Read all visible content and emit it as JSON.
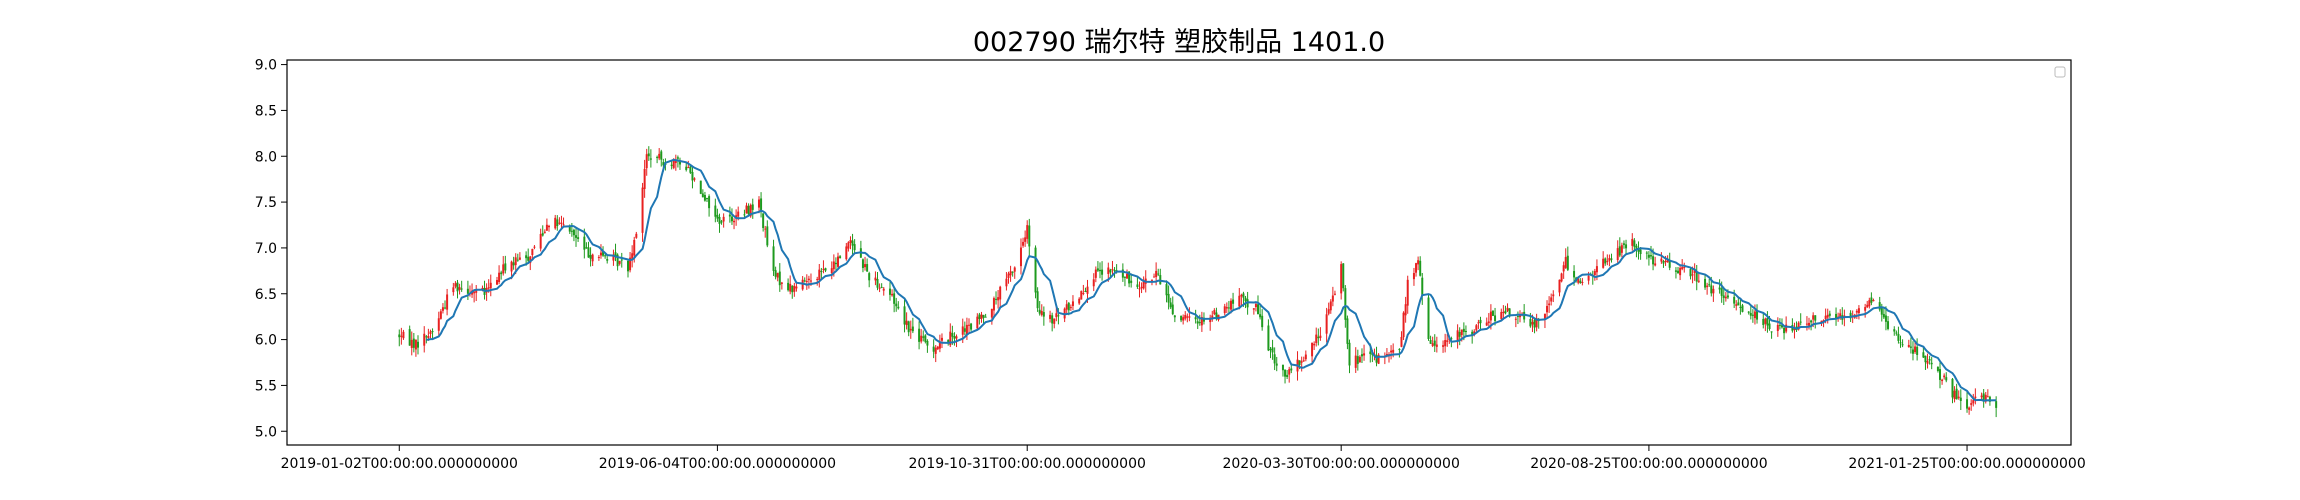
{
  "chart_data": {
    "type": "candlestick",
    "title": "002790 瑞尔特 塑胶制品 1401.0",
    "xlabel": "",
    "ylabel": "",
    "ylim": [
      4.85,
      9.05
    ],
    "xlim": [
      "2018-11-09",
      "2021-03-16"
    ],
    "yticks": [
      5.0,
      5.5,
      6.0,
      6.5,
      7.0,
      7.5,
      8.0,
      8.5,
      9.0
    ],
    "ytick_labels": [
      "5.0",
      "5.5",
      "6.0",
      "6.5",
      "7.0",
      "7.5",
      "8.0",
      "8.5",
      "9.0"
    ],
    "xticks": [
      "2019-01-02",
      "2019-06-04",
      "2019-10-31",
      "2020-03-30",
      "2020-08-25",
      "2021-01-25"
    ],
    "xtick_labels": [
      "2019-01-02T00:00:00.000000000",
      "2019-06-04T00:00:00.000000000",
      "2019-10-31T00:00:00.000000000",
      "2020-03-30T00:00:00.000000000",
      "2020-08-25T00:00:00.000000000",
      "2021-01-25T00:00:00.000000000"
    ],
    "up_color": "#e82020",
    "down_color": "#1e9a1e",
    "ma_color": "#1f77b4",
    "legend": {
      "placement": "upper-right",
      "entries": []
    },
    "grid": false,
    "price_path": [
      [
        "2019-01-02",
        6.05
      ],
      [
        "2019-01-10",
        5.95
      ],
      [
        "2019-01-18",
        6.1
      ],
      [
        "2019-01-28",
        6.6
      ],
      [
        "2019-02-12",
        6.5
      ],
      [
        "2019-02-22",
        6.8
      ],
      [
        "2019-03-05",
        6.9
      ],
      [
        "2019-03-15",
        7.3
      ],
      [
        "2019-03-25",
        7.2
      ],
      [
        "2019-04-02",
        6.95
      ],
      [
        "2019-04-12",
        6.9
      ],
      [
        "2019-04-22",
        6.8
      ],
      [
        "2019-04-26",
        7.2
      ],
      [
        "2019-05-01",
        8.0
      ],
      [
        "2019-05-10",
        7.95
      ],
      [
        "2019-05-20",
        7.9
      ],
      [
        "2019-05-28",
        7.6
      ],
      [
        "2019-06-04",
        7.3
      ],
      [
        "2019-06-14",
        7.35
      ],
      [
        "2019-06-24",
        7.5
      ],
      [
        "2019-07-01",
        6.7
      ],
      [
        "2019-07-10",
        6.55
      ],
      [
        "2019-07-20",
        6.7
      ],
      [
        "2019-07-30",
        6.8
      ],
      [
        "2019-08-07",
        7.1
      ],
      [
        "2019-08-16",
        6.7
      ],
      [
        "2019-08-26",
        6.5
      ],
      [
        "2019-09-05",
        6.1
      ],
      [
        "2019-09-15",
        5.9
      ],
      [
        "2019-09-25",
        6.05
      ],
      [
        "2019-10-05",
        6.15
      ],
      [
        "2019-10-15",
        6.4
      ],
      [
        "2019-10-25",
        6.8
      ],
      [
        "2019-10-31",
        7.2
      ],
      [
        "2019-11-05",
        6.3
      ],
      [
        "2019-11-12",
        6.2
      ],
      [
        "2019-11-22",
        6.4
      ],
      [
        "2019-12-02",
        6.7
      ],
      [
        "2019-12-12",
        6.75
      ],
      [
        "2019-12-22",
        6.6
      ],
      [
        "2020-01-02",
        6.7
      ],
      [
        "2020-01-10",
        6.25
      ],
      [
        "2020-01-20",
        6.2
      ],
      [
        "2020-02-01",
        6.3
      ],
      [
        "2020-02-10",
        6.45
      ],
      [
        "2020-02-18",
        6.35
      ],
      [
        "2020-02-26",
        5.8
      ],
      [
        "2020-03-04",
        5.6
      ],
      [
        "2020-03-12",
        5.8
      ],
      [
        "2020-03-18",
        6.0
      ],
      [
        "2020-03-24",
        6.3
      ],
      [
        "2020-03-30",
        6.8
      ],
      [
        "2020-04-03",
        5.75
      ],
      [
        "2020-04-10",
        5.8
      ],
      [
        "2020-04-20",
        5.8
      ],
      [
        "2020-04-27",
        5.9
      ],
      [
        "2020-05-01",
        6.6
      ],
      [
        "2020-05-06",
        6.85
      ],
      [
        "2020-05-11",
        5.95
      ],
      [
        "2020-05-20",
        6.0
      ],
      [
        "2020-06-01",
        6.1
      ],
      [
        "2020-06-10",
        6.25
      ],
      [
        "2020-06-20",
        6.3
      ],
      [
        "2020-06-30",
        6.15
      ],
      [
        "2020-07-08",
        6.4
      ],
      [
        "2020-07-16",
        6.85
      ],
      [
        "2020-07-24",
        6.6
      ],
      [
        "2020-08-01",
        6.8
      ],
      [
        "2020-08-09",
        6.95
      ],
      [
        "2020-08-17",
        7.05
      ],
      [
        "2020-08-25",
        6.9
      ],
      [
        "2020-09-04",
        6.8
      ],
      [
        "2020-09-14",
        6.75
      ],
      [
        "2020-09-24",
        6.55
      ],
      [
        "2020-10-04",
        6.4
      ],
      [
        "2020-10-14",
        6.3
      ],
      [
        "2020-10-24",
        6.1
      ],
      [
        "2020-11-03",
        6.15
      ],
      [
        "2020-11-13",
        6.25
      ],
      [
        "2020-11-23",
        6.25
      ],
      [
        "2020-12-03",
        6.3
      ],
      [
        "2020-12-11",
        6.45
      ],
      [
        "2020-12-19",
        6.1
      ],
      [
        "2020-12-29",
        5.9
      ],
      [
        "2021-01-08",
        5.75
      ],
      [
        "2021-01-14",
        5.55
      ],
      [
        "2021-01-20",
        5.35
      ],
      [
        "2021-01-25",
        5.25
      ],
      [
        "2021-02-01",
        5.4
      ],
      [
        "2021-02-08",
        5.3
      ]
    ]
  }
}
